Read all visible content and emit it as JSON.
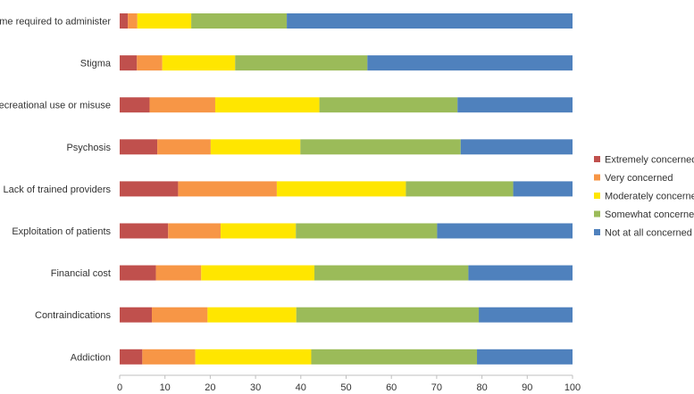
{
  "chart_data": {
    "type": "bar",
    "orientation": "horizontal",
    "stacked": true,
    "categories": [
      "Time required to administer",
      "Stigma",
      "Recreational use or misuse",
      "Psychosis",
      "Lack of trained providers",
      "Exploitation of patients",
      "Financial cost",
      "Contraindications",
      "Addiction"
    ],
    "series": [
      {
        "name": "Extremely concerned",
        "color": "#c0504d",
        "values": [
          1.8,
          3.8,
          6.6,
          8.3,
          12.9,
          10.7,
          8.0,
          7.1,
          5.0
        ]
      },
      {
        "name": "Very concerned",
        "color": "#f79646",
        "values": [
          2.1,
          5.6,
          14.5,
          11.8,
          21.8,
          11.6,
          10.0,
          12.3,
          11.7
        ]
      },
      {
        "name": "Moderately concerned",
        "color": "#ffe600",
        "values": [
          11.9,
          16.1,
          23.0,
          19.8,
          28.5,
          16.6,
          25.0,
          19.6,
          25.6
        ]
      },
      {
        "name": "Somewhat concerned",
        "color": "#9bbb59",
        "values": [
          21.1,
          29.2,
          30.5,
          35.4,
          23.7,
          31.2,
          34.0,
          40.3,
          36.6
        ]
      },
      {
        "name": "Not at all concerned",
        "color": "#4f81bd",
        "values": [
          63.1,
          45.3,
          25.4,
          24.7,
          13.1,
          29.9,
          23.0,
          20.7,
          21.1
        ]
      }
    ],
    "xlim": [
      0,
      100
    ],
    "x_ticks": [
      "0",
      "10",
      "20",
      "30",
      "40",
      "50",
      "60",
      "70",
      "80",
      "90",
      "100"
    ],
    "legend_position": "right",
    "grid": false
  }
}
